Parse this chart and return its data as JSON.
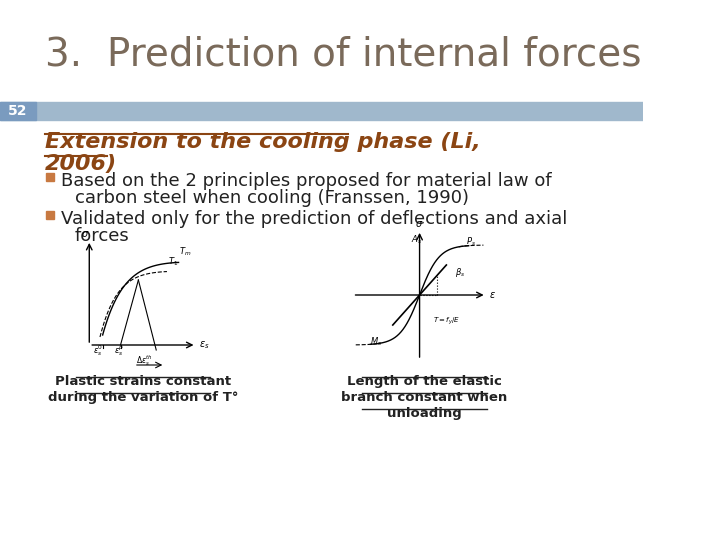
{
  "title": "3.  Prediction of internal forces",
  "title_color": "#7a6a5a",
  "title_fontsize": 28,
  "slide_number": "52",
  "slide_number_bg": "#7a9bbf",
  "slide_number_color": "#ffffff",
  "banner_color": "#a0b8cc",
  "heading_line1": "Extension to the cooling phase (Li,",
  "heading_line2": "2006)",
  "heading_color": "#8b4513",
  "heading_fontsize": 16,
  "bullet_color": "#c87941",
  "bullet1_line1": "Based on the 2 principles proposed for material law of",
  "bullet1_line2": "carbon steel when cooling (Franssen, 1990)",
  "bullet2_line1": "Validated only for the prediction of deflections and axial",
  "bullet2_line2": "forces",
  "bullet_fontsize": 13,
  "caption1_line1": "Plastic strains constant",
  "caption1_line2": "during the variation of T°",
  "caption2_line1": "Length of the elastic",
  "caption2_line2": "branch constant when",
  "caption2_line3": "unloading",
  "bg_color": "#ffffff",
  "text_color": "#222222"
}
